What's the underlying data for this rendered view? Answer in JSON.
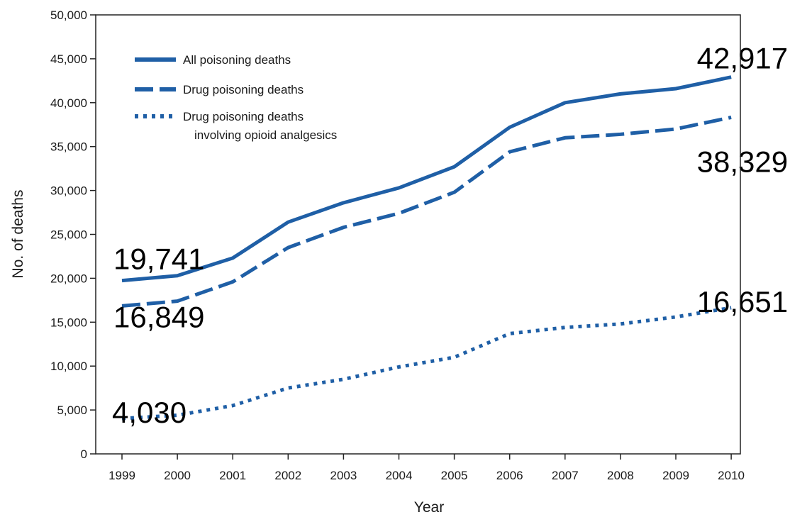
{
  "chart_data": {
    "type": "line",
    "title": "",
    "xlabel": "Year",
    "ylabel": "No. of deaths",
    "x": [
      1999,
      2000,
      2001,
      2002,
      2003,
      2004,
      2005,
      2006,
      2007,
      2008,
      2009,
      2010
    ],
    "x_tick_labels": [
      "1999",
      "2000",
      "2001",
      "2002",
      "2003",
      "2004",
      "2005",
      "2006",
      "2007",
      "2008",
      "2009",
      "2010"
    ],
    "ylim": [
      0,
      50000
    ],
    "y_ticks": [
      0,
      5000,
      10000,
      15000,
      20000,
      25000,
      30000,
      35000,
      40000,
      45000,
      50000
    ],
    "y_tick_labels": [
      "0",
      "5,000",
      "10,000",
      "15,000",
      "20,000",
      "25,000",
      "30,000",
      "35,000",
      "40,000",
      "45,000",
      "50,000"
    ],
    "grid": false,
    "legend_position": "top-left",
    "series": [
      {
        "name": "All poisoning deaths",
        "legend_lines": [
          "All poisoning deaths"
        ],
        "style": "solid",
        "color": "#1f5fa6",
        "values": [
          19741,
          20300,
          22300,
          26400,
          28600,
          30300,
          32700,
          37200,
          40000,
          41000,
          41600,
          42917
        ]
      },
      {
        "name": "Drug poisoning deaths",
        "legend_lines": [
          "Drug poisoning deaths"
        ],
        "style": "dashed",
        "color": "#1f5fa6",
        "values": [
          16849,
          17400,
          19600,
          23500,
          25800,
          27400,
          29800,
          34400,
          36000,
          36400,
          37000,
          38329
        ]
      },
      {
        "name": "Drug poisoning deaths involving opioid analgesics",
        "legend_lines": [
          "Drug poisoning deaths",
          "involving opioid analgesics"
        ],
        "style": "dotted",
        "color": "#1f5fa6",
        "values": [
          4030,
          4400,
          5500,
          7500,
          8500,
          9900,
          11000,
          13700,
          14400,
          14800,
          15600,
          16651
        ]
      }
    ],
    "annotations": [
      {
        "text": "19,741",
        "x": 1999,
        "y": 19741
      },
      {
        "text": "16,849",
        "x": 1999,
        "y": 16849
      },
      {
        "text": "4,030",
        "x": 1999,
        "y": 4030
      },
      {
        "text": "42,917",
        "x": 2010,
        "y": 42917
      },
      {
        "text": "38,329",
        "x": 2010,
        "y": 38329
      },
      {
        "text": "16,651",
        "x": 2010,
        "y": 16651
      }
    ]
  }
}
